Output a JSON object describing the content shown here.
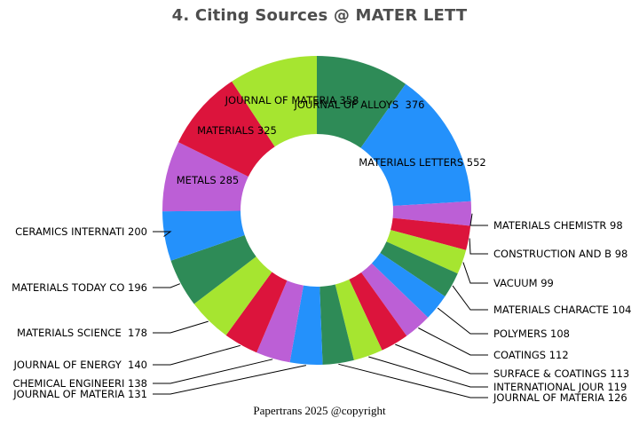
{
  "title": "4. Citing Sources @ MATER LETT",
  "footer": "Papertrans 2025 @copyright",
  "chart_data": {
    "type": "pie",
    "subtype": "donut",
    "title": "4. Citing Sources @ MATER LETT",
    "direction": "clockwise",
    "start_angle_deg": 0,
    "total": 3856,
    "palette": [
      "#2E8B57",
      "#2491FB",
      "#BC5FD6",
      "#DC143C",
      "#A6E530"
    ],
    "series": [
      {
        "name": "JOURNAL OF ALLOYS ",
        "value": 376
      },
      {
        "name": "MATERIALS LETTERS",
        "value": 552
      },
      {
        "name": "MATERIALS CHEMISTR",
        "value": 98
      },
      {
        "name": "CONSTRUCTION AND B",
        "value": 98
      },
      {
        "name": "VACUUM",
        "value": 99
      },
      {
        "name": "MATERIALS CHARACTE",
        "value": 104
      },
      {
        "name": "POLYMERS",
        "value": 108
      },
      {
        "name": "COATINGS",
        "value": 112
      },
      {
        "name": "SURFACE & COATINGS",
        "value": 113
      },
      {
        "name": "INTERNATIONAL JOUR",
        "value": 119
      },
      {
        "name": "JOURNAL OF MATERIA",
        "value": 126
      },
      {
        "name": "JOURNAL OF MATERIA",
        "value": 131
      },
      {
        "name": "CHEMICAL ENGINEERI",
        "value": 138
      },
      {
        "name": "JOURNAL OF ENERGY ",
        "value": 140
      },
      {
        "name": "MATERIALS SCIENCE ",
        "value": 178
      },
      {
        "name": "MATERIALS TODAY CO",
        "value": 196
      },
      {
        "name": "CERAMICS INTERNATI",
        "value": 200
      },
      {
        "name": "METALS",
        "value": 285
      },
      {
        "name": "MATERIALS",
        "value": 325
      },
      {
        "name": "JOURNAL OF MATERIA",
        "value": 358
      }
    ]
  }
}
